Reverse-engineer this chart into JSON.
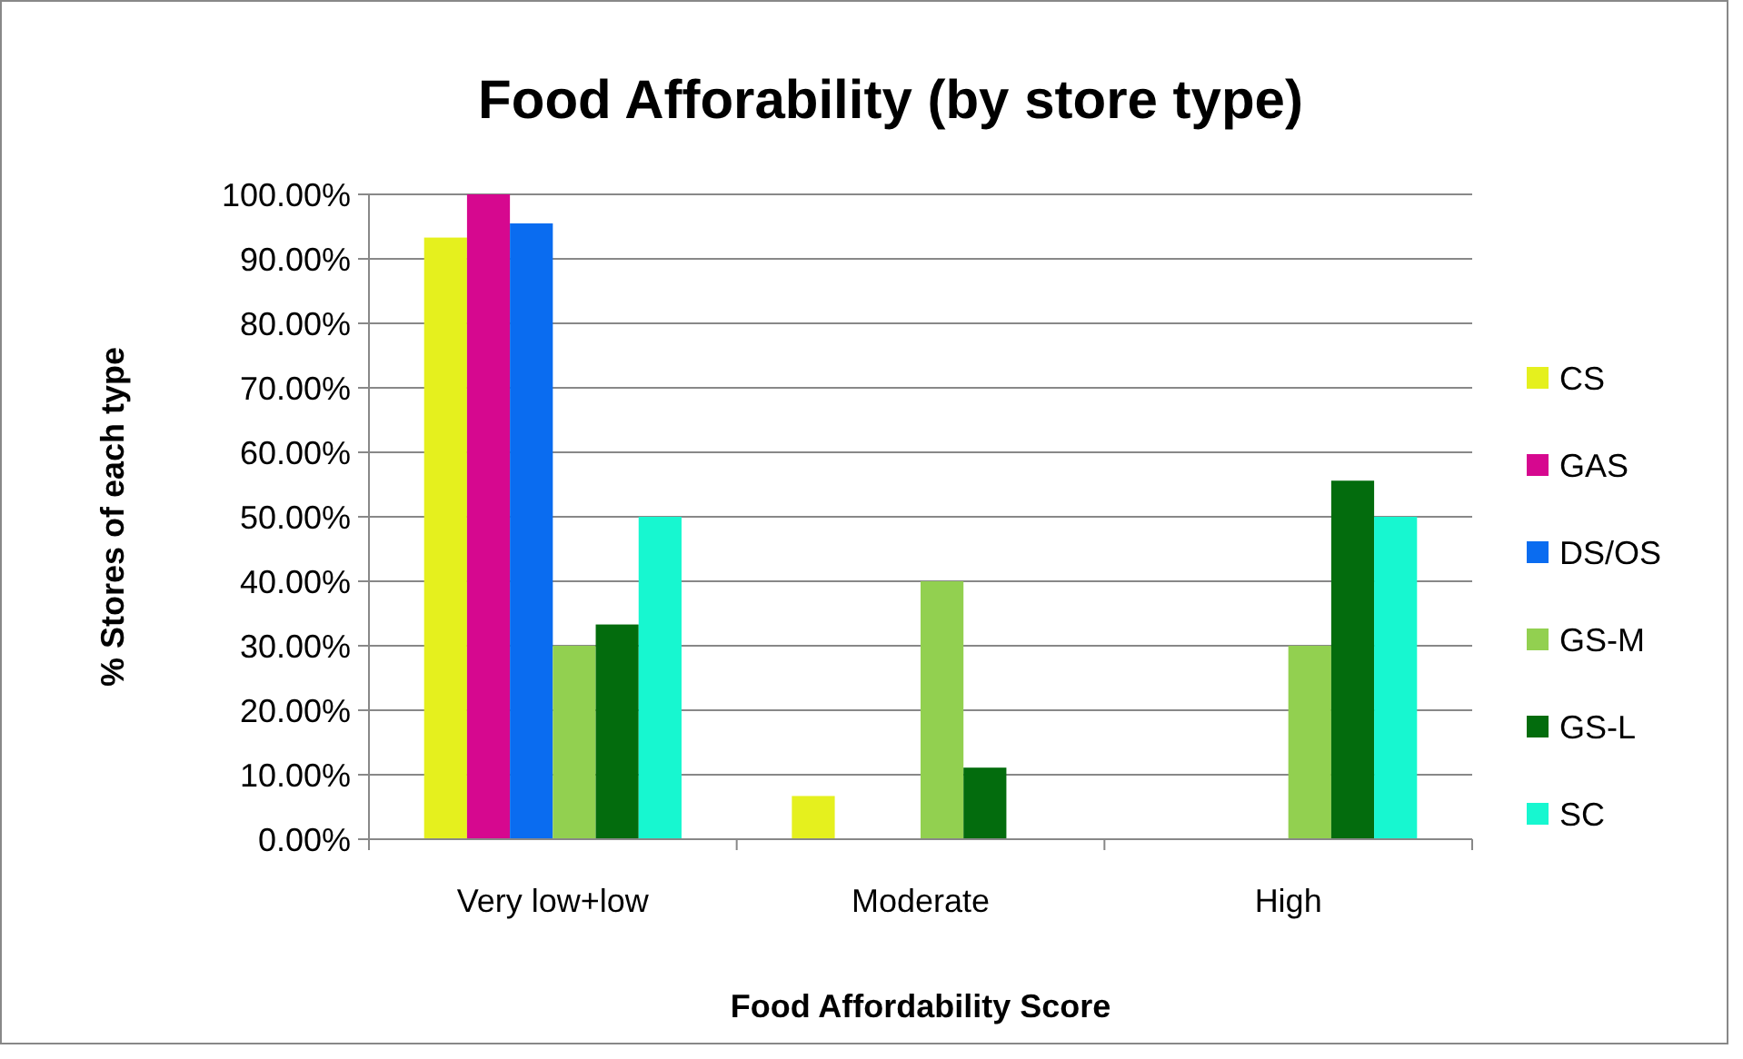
{
  "chart_data": {
    "type": "bar",
    "title": "Food Afforability (by store type)",
    "xlabel": "Food Affordability Score",
    "ylabel": "% Stores of each type",
    "categories": [
      "Very low+low",
      "Moderate",
      "High"
    ],
    "series": [
      {
        "name": "CS",
        "color": "#e5f01e",
        "values": [
          93.3,
          6.7,
          0
        ]
      },
      {
        "name": "GAS",
        "color": "#d6088f",
        "values": [
          100,
          0,
          0
        ]
      },
      {
        "name": "DS/OS",
        "color": "#0a6cf0",
        "values": [
          95.5,
          0,
          0
        ]
      },
      {
        "name": "GS-M",
        "color": "#92d050",
        "values": [
          30,
          40,
          30
        ]
      },
      {
        "name": "GS-L",
        "color": "#036c0d",
        "values": [
          33.3,
          11.1,
          55.6
        ]
      },
      {
        "name": "SC",
        "color": "#17f7d0",
        "values": [
          50,
          0,
          50
        ]
      }
    ],
    "ylim": [
      0,
      100
    ],
    "yticks": [
      {
        "value": 0,
        "label": "0.00%"
      },
      {
        "value": 10,
        "label": "10.00%"
      },
      {
        "value": 20,
        "label": "20.00%"
      },
      {
        "value": 30,
        "label": "30.00%"
      },
      {
        "value": 40,
        "label": "40.00%"
      },
      {
        "value": 50,
        "label": "50.00%"
      },
      {
        "value": 60,
        "label": "60.00%"
      },
      {
        "value": 70,
        "label": "70.00%"
      },
      {
        "value": 80,
        "label": "80.00%"
      },
      {
        "value": 90,
        "label": "90.00%"
      },
      {
        "value": 100,
        "label": "100.00%"
      }
    ],
    "grid": "y",
    "legend": "right"
  }
}
